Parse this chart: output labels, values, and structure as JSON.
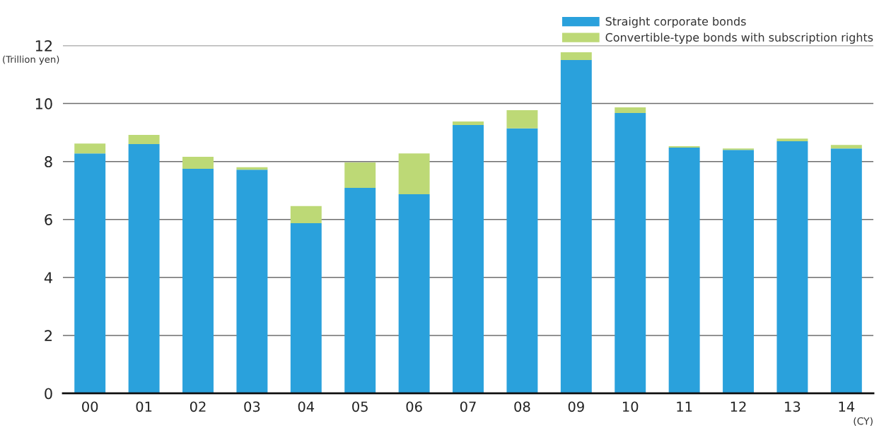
{
  "chart_data": {
    "type": "bar",
    "stacked": true,
    "categories": [
      "00",
      "01",
      "02",
      "03",
      "04",
      "05",
      "06",
      "07",
      "08",
      "09",
      "10",
      "11",
      "12",
      "13",
      "14"
    ],
    "series": [
      {
        "name": "Straight corporate bonds",
        "color": "#2aa1dc",
        "values": [
          8.28,
          8.6,
          7.75,
          7.72,
          5.87,
          7.09,
          6.87,
          9.26,
          9.14,
          11.5,
          9.67,
          8.48,
          8.4,
          8.7,
          8.45
        ]
      },
      {
        "name": "Convertible-type bonds with subscription rights",
        "color": "#bdd976",
        "values": [
          0.34,
          0.32,
          0.41,
          0.08,
          0.59,
          0.88,
          1.41,
          0.12,
          0.63,
          0.27,
          0.2,
          0.05,
          0.05,
          0.09,
          0.12
        ]
      }
    ],
    "ylabel": "(Trillion yen)",
    "xlabel": "(CY)",
    "ylim": [
      0,
      12
    ],
    "yticks": [
      0,
      2,
      4,
      6,
      8,
      10,
      12
    ],
    "grid": "y",
    "legend": "top right"
  }
}
